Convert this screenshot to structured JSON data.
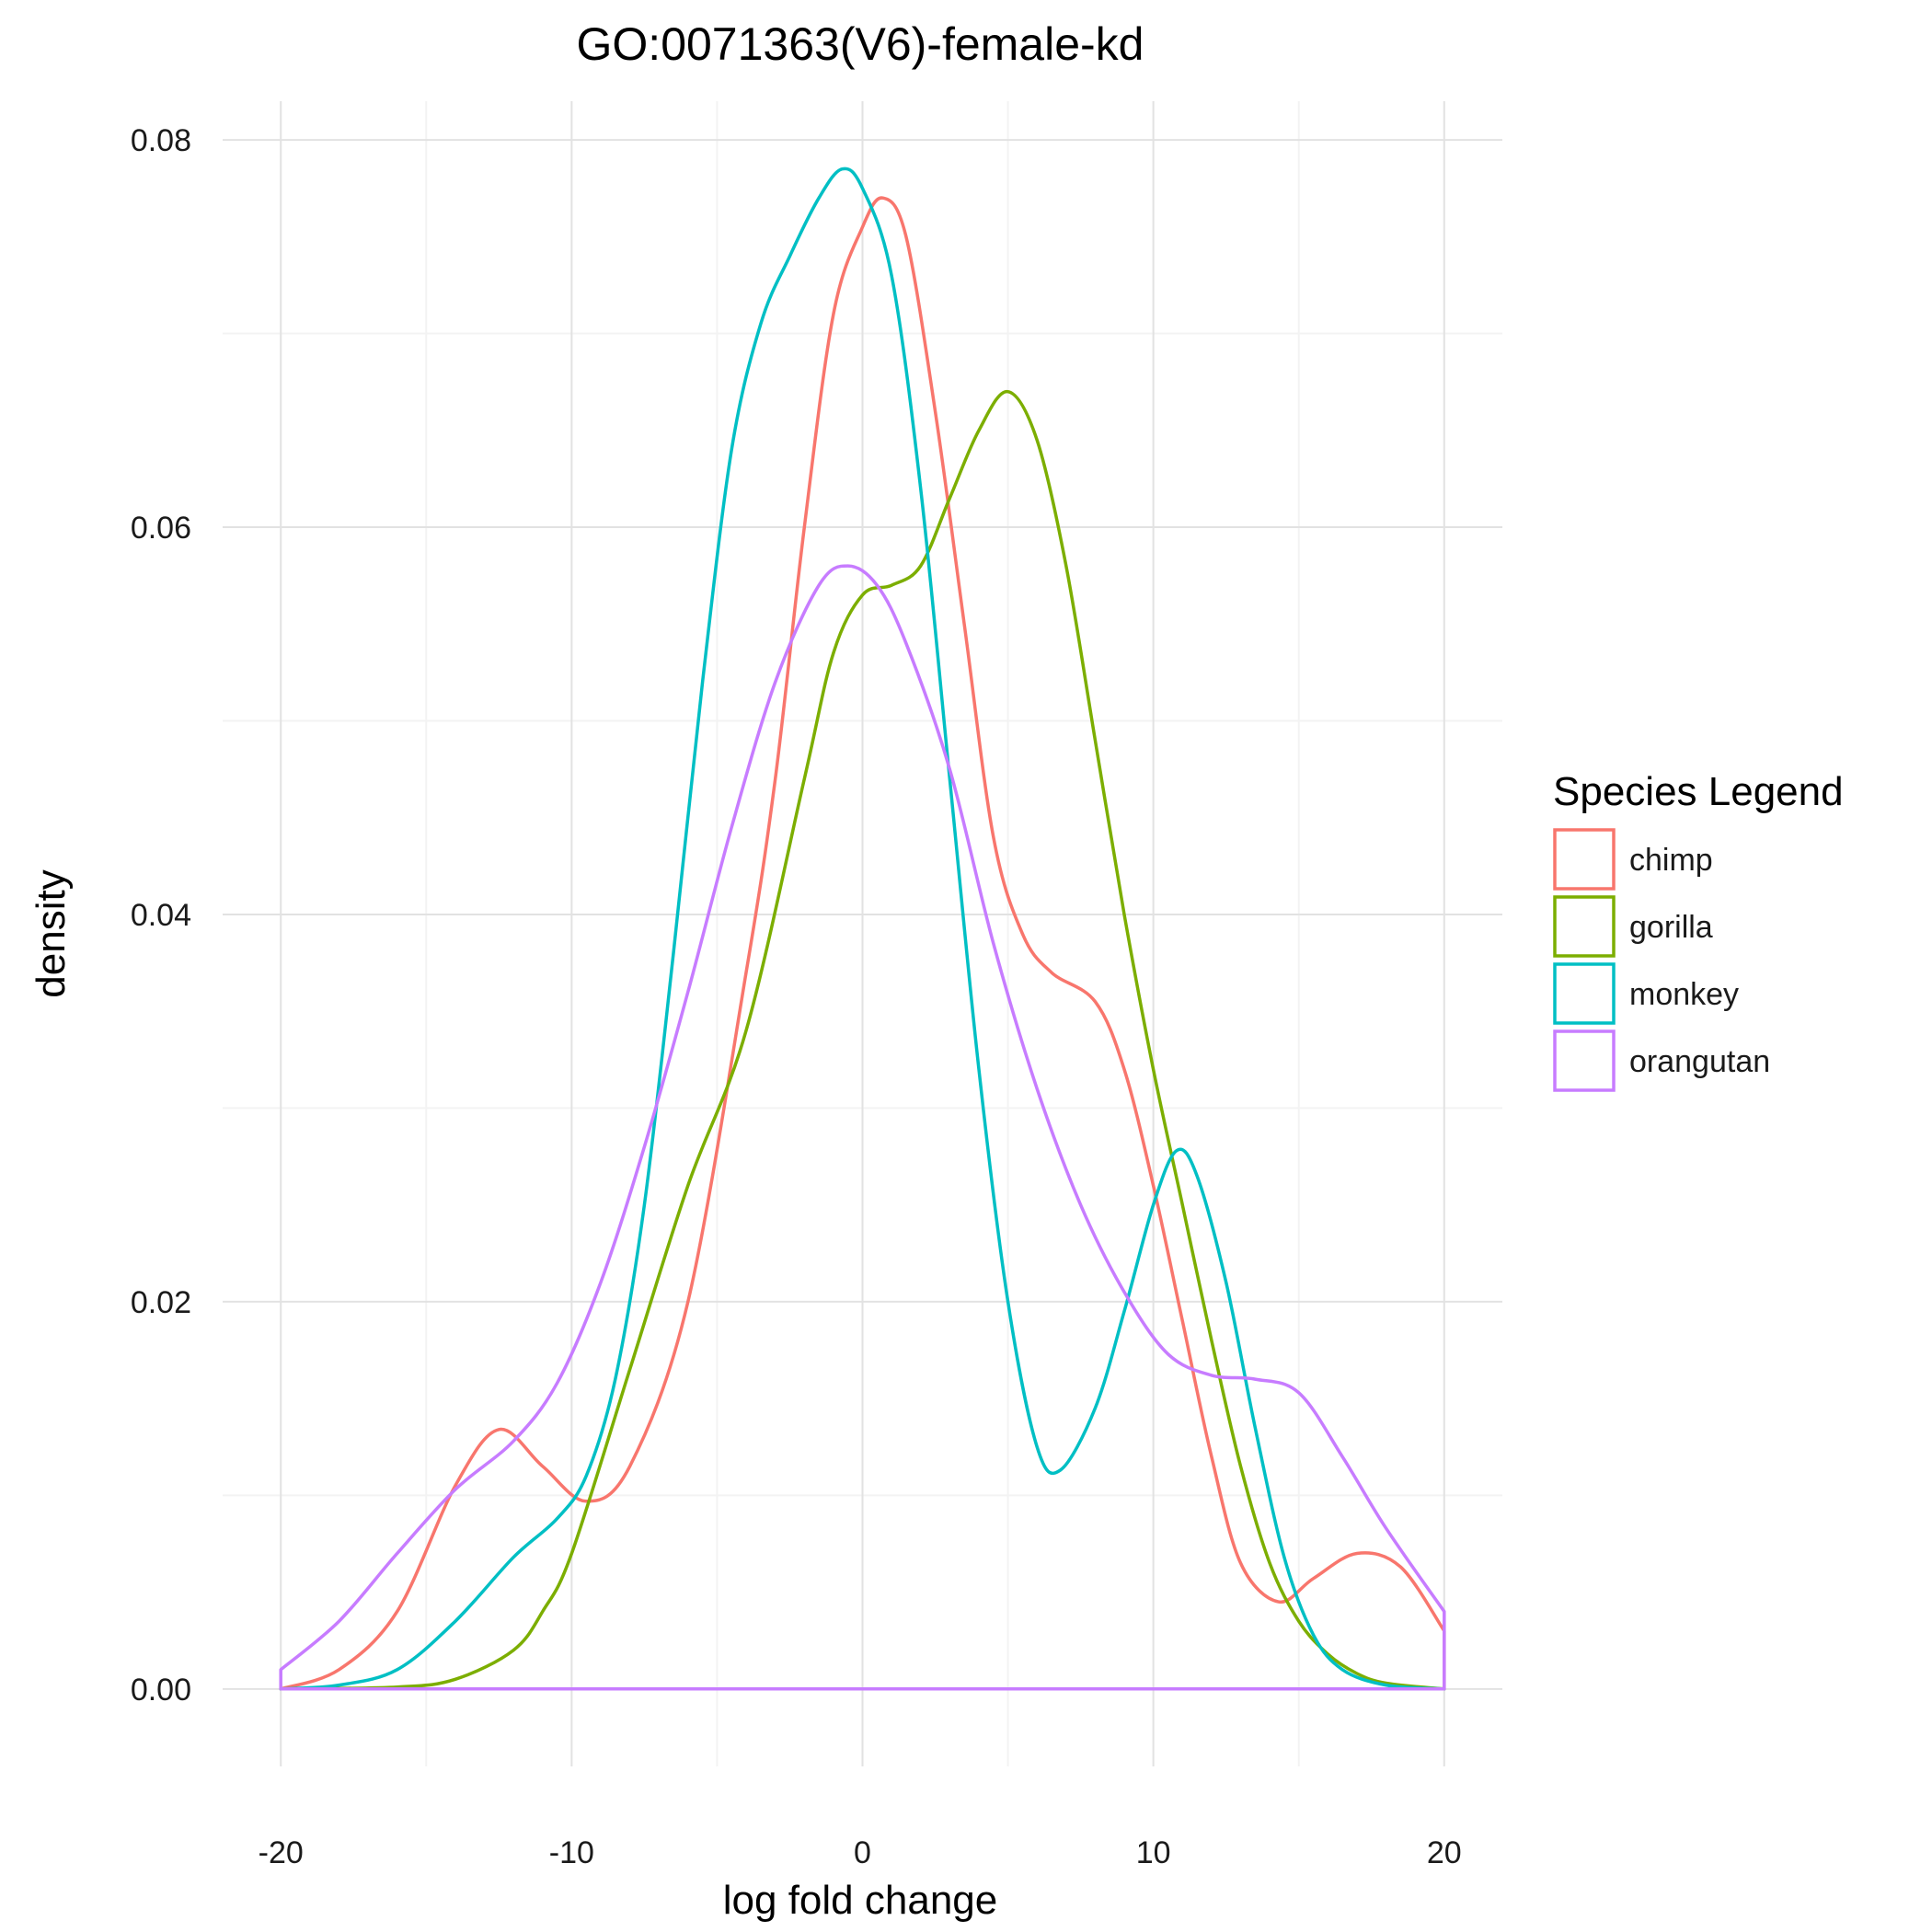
{
  "chart_data": {
    "type": "line",
    "subtype": "density",
    "title": "GO:0071363(V6)-female-kd",
    "xlabel": "log fold change",
    "ylabel": "density",
    "xlim": [
      -22,
      22
    ],
    "ylim": [
      -0.004,
      0.082
    ],
    "x_ticks": [
      -20,
      -10,
      0,
      10,
      20
    ],
    "x_tick_labels": [
      "-20",
      "-10",
      "0",
      "10",
      "20"
    ],
    "y_ticks": [
      0.0,
      0.02,
      0.04,
      0.06,
      0.08
    ],
    "y_tick_labels": [
      "0.00",
      "0.02",
      "0.04",
      "0.06",
      "0.08"
    ],
    "grid": true,
    "legend": {
      "title": "Species Legend",
      "position": "right"
    },
    "series": [
      {
        "name": "chimp",
        "color": "#F8766D",
        "points": [
          [
            -20,
            0.0
          ],
          [
            -18,
            0.001
          ],
          [
            -16,
            0.004
          ],
          [
            -14,
            0.0105
          ],
          [
            -12.5,
            0.0134
          ],
          [
            -11,
            0.0115
          ],
          [
            -9.5,
            0.0097
          ],
          [
            -8,
            0.0115
          ],
          [
            -6,
            0.02
          ],
          [
            -4,
            0.037
          ],
          [
            -3,
            0.047
          ],
          [
            -2,
            0.06
          ],
          [
            -1,
            0.071
          ],
          [
            0,
            0.0755
          ],
          [
            0.7,
            0.077
          ],
          [
            1.5,
            0.075
          ],
          [
            2.5,
            0.066
          ],
          [
            3.5,
            0.055
          ],
          [
            4.5,
            0.044
          ],
          [
            5.5,
            0.039
          ],
          [
            6.5,
            0.037
          ],
          [
            8,
            0.0355
          ],
          [
            9,
            0.032
          ],
          [
            10,
            0.026
          ],
          [
            11,
            0.019
          ],
          [
            12,
            0.012
          ],
          [
            13,
            0.0065
          ],
          [
            14.3,
            0.0045
          ],
          [
            15.5,
            0.0057
          ],
          [
            17,
            0.007
          ],
          [
            18.5,
            0.0063
          ],
          [
            20,
            0.003
          ]
        ]
      },
      {
        "name": "gorilla",
        "color": "#7CAE00",
        "points": [
          [
            -20,
            0.0
          ],
          [
            -16,
            0.0001
          ],
          [
            -14,
            0.0005
          ],
          [
            -12,
            0.002
          ],
          [
            -11,
            0.004
          ],
          [
            -10,
            0.007
          ],
          [
            -8,
            0.0165
          ],
          [
            -6,
            0.026
          ],
          [
            -4,
            0.034
          ],
          [
            -2,
            0.047
          ],
          [
            -1,
            0.0535
          ],
          [
            0,
            0.0565
          ],
          [
            1,
            0.057
          ],
          [
            2,
            0.058
          ],
          [
            3,
            0.0615
          ],
          [
            4,
            0.065
          ],
          [
            5,
            0.067
          ],
          [
            6,
            0.0645
          ],
          [
            7,
            0.058
          ],
          [
            8,
            0.049
          ],
          [
            9,
            0.04
          ],
          [
            10,
            0.032
          ],
          [
            11,
            0.025
          ],
          [
            12,
            0.018
          ],
          [
            13,
            0.0115
          ],
          [
            14,
            0.0065
          ],
          [
            15,
            0.0035
          ],
          [
            16,
            0.0018
          ],
          [
            17,
            0.0008
          ],
          [
            18,
            0.0003
          ],
          [
            20,
            0.0
          ]
        ]
      },
      {
        "name": "monkey",
        "color": "#00BFC4",
        "points": [
          [
            -20,
            0.0
          ],
          [
            -18,
            0.0002
          ],
          [
            -16,
            0.001
          ],
          [
            -14,
            0.0035
          ],
          [
            -12,
            0.0068
          ],
          [
            -10.5,
            0.0088
          ],
          [
            -9.5,
            0.011
          ],
          [
            -8.5,
            0.016
          ],
          [
            -7.5,
            0.025
          ],
          [
            -6.5,
            0.038
          ],
          [
            -5.5,
            0.052
          ],
          [
            -4.5,
            0.064
          ],
          [
            -3.5,
            0.0705
          ],
          [
            -2.5,
            0.074
          ],
          [
            -1.5,
            0.077
          ],
          [
            -0.7,
            0.0785
          ],
          [
            0,
            0.0775
          ],
          [
            1,
            0.073
          ],
          [
            2,
            0.062
          ],
          [
            3,
            0.047
          ],
          [
            4,
            0.032
          ],
          [
            5,
            0.02
          ],
          [
            6,
            0.0125
          ],
          [
            6.8,
            0.0113
          ],
          [
            8,
            0.0145
          ],
          [
            9,
            0.0195
          ],
          [
            10,
            0.025
          ],
          [
            10.8,
            0.0278
          ],
          [
            11.5,
            0.0265
          ],
          [
            12.5,
            0.021
          ],
          [
            13.5,
            0.0135
          ],
          [
            14.5,
            0.0068
          ],
          [
            15.5,
            0.0028
          ],
          [
            16.5,
            0.001
          ],
          [
            18,
            0.0002
          ],
          [
            20,
            0.0
          ]
        ]
      },
      {
        "name": "orangutan",
        "color": "#C77CFF",
        "points": [
          [
            -20,
            0.001
          ],
          [
            -18,
            0.0035
          ],
          [
            -16,
            0.007
          ],
          [
            -14,
            0.0103
          ],
          [
            -12,
            0.0128
          ],
          [
            -10.5,
            0.0158
          ],
          [
            -9,
            0.021
          ],
          [
            -7.5,
            0.028
          ],
          [
            -6,
            0.036
          ],
          [
            -4.5,
            0.0445
          ],
          [
            -3,
            0.052
          ],
          [
            -1.5,
            0.057
          ],
          [
            -0.5,
            0.058
          ],
          [
            0.5,
            0.057
          ],
          [
            1.5,
            0.054
          ],
          [
            3,
            0.0475
          ],
          [
            4.5,
            0.0385
          ],
          [
            6,
            0.031
          ],
          [
            7.5,
            0.025
          ],
          [
            9,
            0.0205
          ],
          [
            10.5,
            0.0173
          ],
          [
            12,
            0.0162
          ],
          [
            13.5,
            0.016
          ],
          [
            15,
            0.0153
          ],
          [
            16.5,
            0.012
          ],
          [
            18,
            0.0083
          ],
          [
            20,
            0.004
          ]
        ]
      }
    ]
  }
}
